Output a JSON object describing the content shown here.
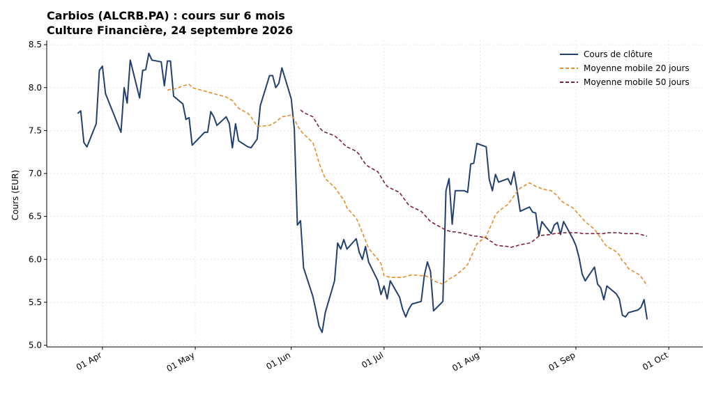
{
  "chart_data": {
    "type": "line",
    "title": "Carbios (ALCRB.PA) : cours sur 6 mois",
    "subtitle": "Culture Financière, 24 septembre 2026",
    "y_label": "Cours (EUR)",
    "x": [
      "03-24",
      "03-25",
      "03-26",
      "03-27",
      "03-30",
      "03-31",
      "04-01",
      "04-02",
      "04-07",
      "04-08",
      "04-09",
      "04-10",
      "04-13",
      "04-14",
      "04-15",
      "04-16",
      "04-17",
      "04-20",
      "04-21",
      "04-22",
      "04-23",
      "04-24",
      "04-27",
      "04-28",
      "04-29",
      "04-30",
      "05-04",
      "05-05",
      "05-06",
      "05-07",
      "05-08",
      "05-11",
      "05-12",
      "05-13",
      "05-14",
      "05-15",
      "05-18",
      "05-19",
      "05-21",
      "05-22",
      "05-25",
      "05-26",
      "05-27",
      "05-28",
      "05-29",
      "06-01",
      "06-02",
      "06-03",
      "06-04",
      "06-05",
      "06-08",
      "06-09",
      "06-10",
      "06-11",
      "06-12",
      "06-15",
      "06-16",
      "06-17",
      "06-18",
      "06-19",
      "06-22",
      "06-23",
      "06-24",
      "06-25",
      "06-26",
      "06-29",
      "06-30",
      "07-01",
      "07-02",
      "07-03",
      "07-06",
      "07-07",
      "07-08",
      "07-09",
      "07-10",
      "07-13",
      "07-14",
      "07-15",
      "07-16",
      "07-17",
      "07-20",
      "07-21",
      "07-22",
      "07-23",
      "07-24",
      "07-27",
      "07-28",
      "07-29",
      "07-30",
      "07-31",
      "08-03",
      "08-04",
      "08-05",
      "08-06",
      "08-07",
      "08-10",
      "08-11",
      "08-12",
      "08-13",
      "08-14",
      "08-17",
      "08-18",
      "08-19",
      "08-20",
      "08-21",
      "08-24",
      "08-25",
      "08-26",
      "08-27",
      "08-28",
      "08-31",
      "09-01",
      "09-02",
      "09-03",
      "09-04",
      "09-07",
      "09-08",
      "09-09",
      "09-10",
      "09-11",
      "09-14",
      "09-15",
      "09-16",
      "09-17",
      "09-18",
      "09-21",
      "09-22",
      "09-23",
      "09-24"
    ],
    "series": [
      {
        "name": "Cours de clôture",
        "color": "#22406e",
        "dash": false,
        "values": [
          7.7,
          7.73,
          7.36,
          7.31,
          7.58,
          8.2,
          8.25,
          7.93,
          7.48,
          8.0,
          7.82,
          8.32,
          7.88,
          8.2,
          8.21,
          8.4,
          8.32,
          8.3,
          8.02,
          8.31,
          8.31,
          7.9,
          7.81,
          7.63,
          7.65,
          7.33,
          7.48,
          7.48,
          7.72,
          7.66,
          7.56,
          7.66,
          7.58,
          7.3,
          7.58,
          7.38,
          7.31,
          7.3,
          7.4,
          7.79,
          8.14,
          8.14,
          8.0,
          8.05,
          8.23,
          7.87,
          7.52,
          6.4,
          6.45,
          5.9,
          5.57,
          5.4,
          5.22,
          5.15,
          5.38,
          5.75,
          6.19,
          6.12,
          6.23,
          6.12,
          6.24,
          6.08,
          6.0,
          6.15,
          5.97,
          5.75,
          5.59,
          5.69,
          5.54,
          5.75,
          5.56,
          5.42,
          5.33,
          5.42,
          5.48,
          5.51,
          5.81,
          5.97,
          5.86,
          5.4,
          5.51,
          6.8,
          6.94,
          6.41,
          6.8,
          6.8,
          6.78,
          7.11,
          7.12,
          7.35,
          7.31,
          6.93,
          6.8,
          6.99,
          6.9,
          6.94,
          6.87,
          7.02,
          6.8,
          6.56,
          6.61,
          6.55,
          6.54,
          6.27,
          6.44,
          6.3,
          6.4,
          6.43,
          6.29,
          6.44,
          6.24,
          6.16,
          6.02,
          5.83,
          5.75,
          5.91,
          5.71,
          5.67,
          5.53,
          5.69,
          5.6,
          5.54,
          5.35,
          5.33,
          5.38,
          5.41,
          5.44,
          5.53,
          5.3
        ]
      },
      {
        "name": "Moyenne mobile 20 jours",
        "color": "#e08f2a",
        "dash": true,
        "values": [
          null,
          null,
          null,
          null,
          null,
          null,
          null,
          null,
          null,
          null,
          null,
          null,
          null,
          null,
          null,
          null,
          null,
          null,
          null,
          7.97,
          7.98,
          7.98,
          8.02,
          8.03,
          8.04,
          8.0,
          7.96,
          7.95,
          7.94,
          7.93,
          7.92,
          7.89,
          7.87,
          7.85,
          7.8,
          7.76,
          7.7,
          7.66,
          7.55,
          7.55,
          7.56,
          7.58,
          7.6,
          7.63,
          7.66,
          7.68,
          7.63,
          7.56,
          7.5,
          7.46,
          7.36,
          7.25,
          7.12,
          7.03,
          6.94,
          6.84,
          6.79,
          6.74,
          6.69,
          6.6,
          6.48,
          6.4,
          6.31,
          6.22,
          6.13,
          6.0,
          5.95,
          5.81,
          5.8,
          5.79,
          5.79,
          5.79,
          5.8,
          5.81,
          5.82,
          5.81,
          5.81,
          5.8,
          5.78,
          5.75,
          5.71,
          5.74,
          5.77,
          5.79,
          5.81,
          5.9,
          5.94,
          6.02,
          6.1,
          6.18,
          6.27,
          6.35,
          6.43,
          6.52,
          6.56,
          6.64,
          6.69,
          6.74,
          6.79,
          6.83,
          6.89,
          6.87,
          6.85,
          6.84,
          6.82,
          6.8,
          6.77,
          6.74,
          6.69,
          6.66,
          6.6,
          6.56,
          6.52,
          6.48,
          6.44,
          6.35,
          6.3,
          6.25,
          6.19,
          6.15,
          6.09,
          6.05,
          5.98,
          5.95,
          5.89,
          5.83,
          5.8,
          5.75,
          5.69
        ]
      },
      {
        "name": "Moyenne mobile 50 jours",
        "color": "#7b2333",
        "dash": true,
        "values": [
          null,
          null,
          null,
          null,
          null,
          null,
          null,
          null,
          null,
          null,
          null,
          null,
          null,
          null,
          null,
          null,
          null,
          null,
          null,
          null,
          null,
          null,
          null,
          null,
          null,
          null,
          null,
          null,
          null,
          null,
          null,
          null,
          null,
          null,
          null,
          null,
          null,
          null,
          null,
          null,
          null,
          null,
          null,
          null,
          null,
          null,
          null,
          null,
          7.74,
          7.71,
          7.66,
          7.6,
          7.54,
          7.5,
          7.48,
          7.44,
          7.41,
          7.38,
          7.34,
          7.31,
          7.26,
          7.22,
          7.16,
          7.11,
          7.08,
          7.02,
          6.96,
          6.9,
          6.85,
          6.83,
          6.78,
          6.73,
          6.68,
          6.63,
          6.61,
          6.56,
          6.52,
          6.48,
          6.44,
          6.42,
          6.36,
          6.34,
          6.33,
          6.32,
          6.32,
          6.3,
          6.29,
          6.28,
          6.27,
          6.27,
          6.25,
          6.22,
          6.2,
          6.17,
          6.16,
          6.15,
          6.14,
          6.15,
          6.16,
          6.17,
          6.19,
          6.21,
          6.24,
          6.27,
          6.28,
          6.29,
          6.3,
          6.3,
          6.31,
          6.31,
          6.31,
          6.31,
          6.31,
          6.3,
          6.3,
          6.3,
          6.3,
          6.3,
          6.3,
          6.31,
          6.31,
          6.31,
          6.3,
          6.3,
          6.3,
          6.3,
          6.29,
          6.28,
          6.27
        ]
      }
    ],
    "xlim": [
      "03-14",
      "10-12"
    ],
    "xticks": [
      {
        "value": "04-01",
        "label": "01 Apr"
      },
      {
        "value": "05-01",
        "label": "01 May"
      },
      {
        "value": "06-01",
        "label": "01 Jun"
      },
      {
        "value": "07-01",
        "label": "01 Jul"
      },
      {
        "value": "08-01",
        "label": "01 Aug"
      },
      {
        "value": "09-01",
        "label": "01 Sep"
      },
      {
        "value": "10-01",
        "label": "01 Oct"
      }
    ],
    "ylim": [
      4.98,
      8.55
    ],
    "yticks": [
      {
        "value": 5,
        "label": "5.0"
      },
      5.5,
      {
        "value": 6,
        "label": "6.0"
      },
      6.5,
      {
        "value": 7,
        "label": "7.0"
      },
      7.5,
      {
        "value": 8,
        "label": "8.0"
      },
      8.5
    ],
    "grid": true,
    "legend": "upper right"
  }
}
